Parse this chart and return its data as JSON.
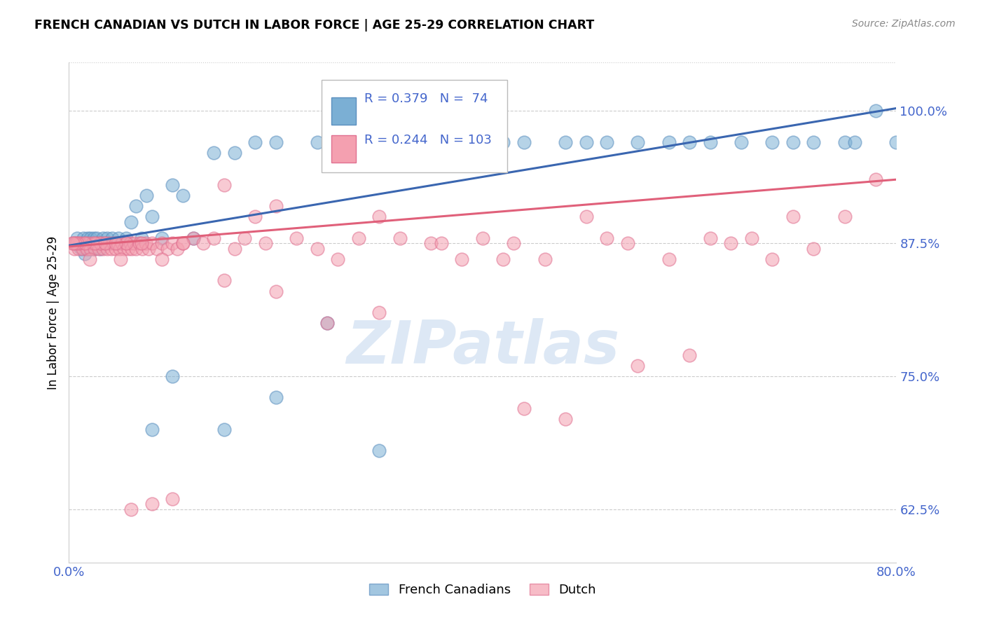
{
  "title": "FRENCH CANADIAN VS DUTCH IN LABOR FORCE | AGE 25-29 CORRELATION CHART",
  "source": "Source: ZipAtlas.com",
  "ylabel": "In Labor Force | Age 25-29",
  "xlim": [
    0.0,
    0.8
  ],
  "ylim": [
    0.575,
    1.045
  ],
  "yticks": [
    0.625,
    0.75,
    0.875,
    1.0
  ],
  "ytick_labels": [
    "62.5%",
    "75.0%",
    "87.5%",
    "100.0%"
  ],
  "xticks": [
    0.0,
    0.1,
    0.2,
    0.3,
    0.4,
    0.5,
    0.6,
    0.7,
    0.8
  ],
  "xtick_labels": [
    "0.0%",
    "",
    "",
    "",
    "",
    "",
    "",
    "",
    "80.0%"
  ],
  "legend_blue_r": "R = 0.379",
  "legend_blue_n": "N =  74",
  "legend_pink_r": "R = 0.244",
  "legend_pink_n": "N = 103",
  "blue_fill": "#7bafd4",
  "blue_edge": "#5b8fbf",
  "pink_fill": "#f4a0b0",
  "pink_edge": "#e07090",
  "blue_line_color": "#3a66b0",
  "pink_line_color": "#e0607a",
  "axis_color": "#4466cc",
  "watermark_color": "#dde8f5",
  "blue_trend": [
    0.873,
    1.002
  ],
  "pink_trend": [
    0.872,
    0.935
  ],
  "blue_x": [
    0.005,
    0.008,
    0.01,
    0.012,
    0.013,
    0.014,
    0.015,
    0.016,
    0.017,
    0.018,
    0.019,
    0.02,
    0.021,
    0.022,
    0.023,
    0.024,
    0.025,
    0.026,
    0.027,
    0.028,
    0.03,
    0.031,
    0.033,
    0.035,
    0.037,
    0.04,
    0.042,
    0.045,
    0.048,
    0.05,
    0.055,
    0.06,
    0.065,
    0.07,
    0.075,
    0.08,
    0.09,
    0.1,
    0.11,
    0.12,
    0.14,
    0.16,
    0.18,
    0.2,
    0.24,
    0.28,
    0.3,
    0.32,
    0.35,
    0.38,
    0.42,
    0.48,
    0.52,
    0.58,
    0.62,
    0.65,
    0.68,
    0.72,
    0.75,
    0.78,
    0.4,
    0.44,
    0.5,
    0.55,
    0.6,
    0.7,
    0.76,
    0.8,
    0.25,
    0.3,
    0.2,
    0.15,
    0.1,
    0.08
  ],
  "blue_y": [
    0.875,
    0.88,
    0.872,
    0.87,
    0.875,
    0.88,
    0.865,
    0.87,
    0.875,
    0.88,
    0.87,
    0.875,
    0.88,
    0.87,
    0.875,
    0.88,
    0.87,
    0.875,
    0.88,
    0.875,
    0.87,
    0.875,
    0.88,
    0.875,
    0.88,
    0.875,
    0.88,
    0.875,
    0.88,
    0.875,
    0.88,
    0.895,
    0.91,
    0.88,
    0.92,
    0.9,
    0.88,
    0.93,
    0.92,
    0.88,
    0.96,
    0.96,
    0.97,
    0.97,
    0.97,
    0.97,
    0.97,
    0.97,
    0.97,
    0.97,
    0.97,
    0.97,
    0.97,
    0.97,
    0.97,
    0.97,
    0.97,
    0.97,
    0.97,
    1.0,
    0.97,
    0.97,
    0.97,
    0.97,
    0.97,
    0.97,
    0.97,
    0.97,
    0.8,
    0.68,
    0.73,
    0.7,
    0.75,
    0.7
  ],
  "pink_x": [
    0.003,
    0.005,
    0.007,
    0.009,
    0.011,
    0.013,
    0.015,
    0.017,
    0.019,
    0.021,
    0.023,
    0.025,
    0.027,
    0.029,
    0.031,
    0.033,
    0.035,
    0.037,
    0.039,
    0.041,
    0.043,
    0.045,
    0.047,
    0.049,
    0.051,
    0.053,
    0.055,
    0.057,
    0.059,
    0.061,
    0.063,
    0.065,
    0.068,
    0.071,
    0.074,
    0.077,
    0.08,
    0.085,
    0.09,
    0.095,
    0.1,
    0.105,
    0.11,
    0.12,
    0.13,
    0.14,
    0.15,
    0.16,
    0.17,
    0.18,
    0.19,
    0.2,
    0.22,
    0.24,
    0.26,
    0.28,
    0.3,
    0.32,
    0.35,
    0.38,
    0.4,
    0.43,
    0.46,
    0.5,
    0.52,
    0.54,
    0.58,
    0.62,
    0.64,
    0.68,
    0.72,
    0.75,
    0.78,
    0.44,
    0.48,
    0.55,
    0.6,
    0.66,
    0.7,
    0.36,
    0.42,
    0.25,
    0.3,
    0.2,
    0.15,
    0.11,
    0.09,
    0.07,
    0.05,
    0.03,
    0.02,
    0.01,
    0.025,
    0.015,
    0.035,
    0.008,
    0.006,
    0.004,
    0.055,
    0.045,
    0.06,
    0.08,
    0.1
  ],
  "pink_y": [
    0.875,
    0.87,
    0.875,
    0.87,
    0.875,
    0.87,
    0.875,
    0.87,
    0.875,
    0.87,
    0.875,
    0.87,
    0.875,
    0.87,
    0.875,
    0.87,
    0.875,
    0.87,
    0.875,
    0.87,
    0.875,
    0.87,
    0.875,
    0.87,
    0.875,
    0.87,
    0.875,
    0.87,
    0.875,
    0.87,
    0.875,
    0.87,
    0.875,
    0.87,
    0.875,
    0.87,
    0.875,
    0.87,
    0.875,
    0.87,
    0.875,
    0.87,
    0.875,
    0.88,
    0.875,
    0.88,
    0.93,
    0.87,
    0.88,
    0.9,
    0.875,
    0.91,
    0.88,
    0.87,
    0.86,
    0.88,
    0.9,
    0.88,
    0.875,
    0.86,
    0.88,
    0.875,
    0.86,
    0.9,
    0.88,
    0.875,
    0.86,
    0.88,
    0.875,
    0.86,
    0.87,
    0.9,
    0.935,
    0.72,
    0.71,
    0.76,
    0.77,
    0.88,
    0.9,
    0.875,
    0.86,
    0.8,
    0.81,
    0.83,
    0.84,
    0.875,
    0.86,
    0.875,
    0.86,
    0.875,
    0.86,
    0.875,
    0.875,
    0.875,
    0.875,
    0.875,
    0.875,
    0.875,
    0.875,
    0.875,
    0.625,
    0.63,
    0.635
  ]
}
